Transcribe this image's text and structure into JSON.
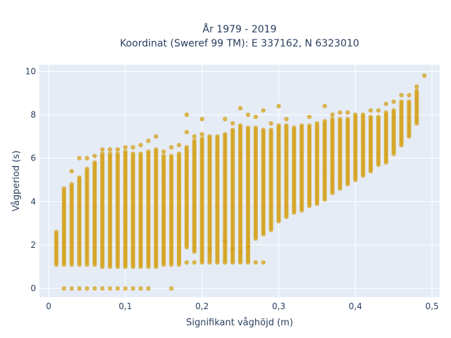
{
  "chart_data": {
    "type": "scatter",
    "title_line1": "År 1979 - 2019",
    "title_line2": "Koordinat (Sweref 99 TM): E 337162, N 6323010",
    "xlabel": "Signifikant våghöjd (m)",
    "ylabel": "Vågperiod (s)",
    "xlim": [
      -0.012,
      0.51
    ],
    "ylim": [
      -0.4,
      10.3
    ],
    "x_ticks": [
      0,
      0.1,
      0.2,
      0.3,
      0.4,
      0.5
    ],
    "x_tick_labels": [
      "0",
      "0,1",
      "0,2",
      "0,3",
      "0,4",
      "0,5"
    ],
    "y_ticks": [
      0,
      2,
      4,
      6,
      8,
      10
    ],
    "y_tick_labels": [
      "0",
      "2",
      "4",
      "6",
      "8",
      "10"
    ],
    "grid": true,
    "marker_color": "#d4a017",
    "plot_bg": "#e5ecf6",
    "columns": [
      {
        "x": 0.01,
        "ymin": 1.1,
        "ymax": 2.6,
        "extra": []
      },
      {
        "x": 0.02,
        "ymin": 1.1,
        "ymax": 4.6,
        "extra": [
          0
        ]
      },
      {
        "x": 0.03,
        "ymin": 1.1,
        "ymax": 4.8,
        "extra": [
          0,
          5.4
        ]
      },
      {
        "x": 0.04,
        "ymin": 1.1,
        "ymax": 5.1,
        "extra": [
          0,
          6.0
        ]
      },
      {
        "x": 0.05,
        "ymin": 1.1,
        "ymax": 5.5,
        "extra": [
          0,
          6.0
        ]
      },
      {
        "x": 0.06,
        "ymin": 1.1,
        "ymax": 5.8,
        "extra": [
          0,
          6.1
        ]
      },
      {
        "x": 0.07,
        "ymin": 1.0,
        "ymax": 6.2,
        "extra": [
          0,
          6.4
        ]
      },
      {
        "x": 0.08,
        "ymin": 1.0,
        "ymax": 6.2,
        "extra": [
          0,
          6.4
        ]
      },
      {
        "x": 0.09,
        "ymin": 1.0,
        "ymax": 6.2,
        "extra": [
          0,
          6.4
        ]
      },
      {
        "x": 0.1,
        "ymin": 1.0,
        "ymax": 6.3,
        "extra": [
          0,
          6.5
        ]
      },
      {
        "x": 0.11,
        "ymin": 1.0,
        "ymax": 6.2,
        "extra": [
          0,
          6.5
        ]
      },
      {
        "x": 0.12,
        "ymin": 1.0,
        "ymax": 6.2,
        "extra": [
          0,
          6.6
        ]
      },
      {
        "x": 0.13,
        "ymin": 1.0,
        "ymax": 6.3,
        "extra": [
          0,
          6.8
        ]
      },
      {
        "x": 0.14,
        "ymin": 1.0,
        "ymax": 6.4,
        "extra": [
          7.0
        ]
      },
      {
        "x": 0.15,
        "ymin": 1.1,
        "ymax": 6.1,
        "extra": [
          6.3
        ]
      },
      {
        "x": 0.16,
        "ymin": 1.1,
        "ymax": 6.1,
        "extra": [
          0,
          6.5
        ]
      },
      {
        "x": 0.17,
        "ymin": 1.1,
        "ymax": 6.2,
        "extra": [
          6.6
        ]
      },
      {
        "x": 0.18,
        "ymin": 1.9,
        "ymax": 6.5,
        "extra": [
          8.0,
          7.2,
          1.2
        ]
      },
      {
        "x": 0.19,
        "ymin": 1.7,
        "ymax": 6.8,
        "extra": [
          7.0,
          1.2
        ]
      },
      {
        "x": 0.2,
        "ymin": 1.2,
        "ymax": 6.9,
        "extra": [
          7.8,
          7.1
        ]
      },
      {
        "x": 0.21,
        "ymin": 1.2,
        "ymax": 6.9,
        "extra": [
          7.0,
          1.8
        ]
      },
      {
        "x": 0.22,
        "ymin": 1.2,
        "ymax": 7.0,
        "extra": []
      },
      {
        "x": 0.23,
        "ymin": 1.2,
        "ymax": 7.1,
        "extra": [
          7.8,
          2.2
        ]
      },
      {
        "x": 0.24,
        "ymin": 1.2,
        "ymax": 7.3,
        "extra": [
          7.6,
          1.8
        ]
      },
      {
        "x": 0.25,
        "ymin": 1.2,
        "ymax": 7.5,
        "extra": [
          8.3,
          1.7
        ]
      },
      {
        "x": 0.26,
        "ymin": 1.2,
        "ymax": 7.4,
        "extra": [
          8.0,
          1.9
        ]
      },
      {
        "x": 0.27,
        "ymin": 2.3,
        "ymax": 7.4,
        "extra": [
          7.9,
          1.2
        ]
      },
      {
        "x": 0.28,
        "ymin": 2.5,
        "ymax": 7.3,
        "extra": [
          8.2,
          1.2
        ]
      },
      {
        "x": 0.29,
        "ymin": 2.7,
        "ymax": 7.3,
        "extra": [
          7.6
        ]
      },
      {
        "x": 0.3,
        "ymin": 3.1,
        "ymax": 7.5,
        "extra": [
          8.4
        ]
      },
      {
        "x": 0.31,
        "ymin": 3.3,
        "ymax": 7.5,
        "extra": [
          7.8
        ]
      },
      {
        "x": 0.32,
        "ymin": 3.5,
        "ymax": 7.4,
        "extra": []
      },
      {
        "x": 0.33,
        "ymin": 3.6,
        "ymax": 7.5,
        "extra": []
      },
      {
        "x": 0.34,
        "ymin": 3.8,
        "ymax": 7.5,
        "extra": [
          7.9
        ]
      },
      {
        "x": 0.35,
        "ymin": 3.9,
        "ymax": 7.6,
        "extra": []
      },
      {
        "x": 0.36,
        "ymin": 4.1,
        "ymax": 7.7,
        "extra": [
          8.4
        ]
      },
      {
        "x": 0.37,
        "ymin": 4.4,
        "ymax": 7.8,
        "extra": [
          8.0
        ]
      },
      {
        "x": 0.38,
        "ymin": 4.6,
        "ymax": 7.8,
        "extra": [
          8.1
        ]
      },
      {
        "x": 0.39,
        "ymin": 4.8,
        "ymax": 7.8,
        "extra": [
          8.1
        ]
      },
      {
        "x": 0.4,
        "ymin": 5.0,
        "ymax": 8.0,
        "extra": []
      },
      {
        "x": 0.41,
        "ymin": 5.2,
        "ymax": 8.0,
        "extra": []
      },
      {
        "x": 0.42,
        "ymin": 5.4,
        "ymax": 7.9,
        "extra": [
          8.2
        ]
      },
      {
        "x": 0.43,
        "ymin": 5.7,
        "ymax": 7.9,
        "extra": [
          8.2
        ]
      },
      {
        "x": 0.44,
        "ymin": 5.8,
        "ymax": 8.1,
        "extra": [
          8.5
        ]
      },
      {
        "x": 0.45,
        "ymin": 6.2,
        "ymax": 8.2,
        "extra": [
          8.6
        ]
      },
      {
        "x": 0.46,
        "ymin": 6.6,
        "ymax": 8.6,
        "extra": [
          8.9
        ]
      },
      {
        "x": 0.47,
        "ymin": 7.0,
        "ymax": 8.6,
        "extra": [
          8.9
        ]
      },
      {
        "x": 0.48,
        "ymin": 7.6,
        "ymax": 9.1,
        "extra": [
          9.3
        ]
      },
      {
        "x": 0.49,
        "ymin": 9.8,
        "ymax": 9.8,
        "extra": []
      }
    ]
  }
}
